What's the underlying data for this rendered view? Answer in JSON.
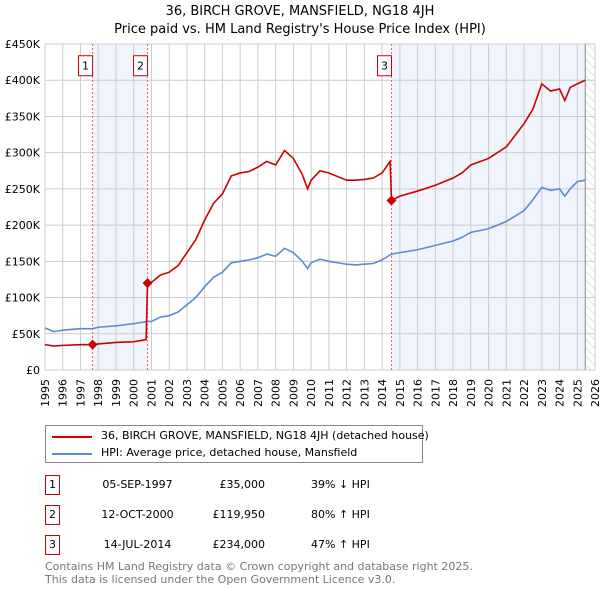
{
  "title_line1": "36, BIRCH GROVE, MANSFIELD, NG18 4JH",
  "title_line2": "Price paid vs. HM Land Registry's House Price Index (HPI)",
  "chart_data": {
    "type": "line",
    "title": "36, BIRCH GROVE, MANSFIELD, NG18 4JH — Price paid vs. HM Land Registry's House Price Index (HPI)",
    "xlim": [
      1995,
      2026
    ],
    "ylim": [
      0,
      450000
    ],
    "x_ticks": [
      "1995",
      "1996",
      "1997",
      "1998",
      "1999",
      "2000",
      "2001",
      "2002",
      "2003",
      "2004",
      "2005",
      "2006",
      "2007",
      "2008",
      "2009",
      "2010",
      "2011",
      "2012",
      "2013",
      "2014",
      "2015",
      "2016",
      "2017",
      "2018",
      "2019",
      "2020",
      "2021",
      "2022",
      "2023",
      "2024",
      "2025",
      "2026"
    ],
    "y_ticks": [
      {
        "value": 0,
        "label": "£0"
      },
      {
        "value": 50000,
        "label": "£50K"
      },
      {
        "value": 100000,
        "label": "£100K"
      },
      {
        "value": 150000,
        "label": "£150K"
      },
      {
        "value": 200000,
        "label": "£200K"
      },
      {
        "value": 250000,
        "label": "£250K"
      },
      {
        "value": 300000,
        "label": "£300K"
      },
      {
        "value": 350000,
        "label": "£350K"
      },
      {
        "value": 400000,
        "label": "£400K"
      },
      {
        "value": 450000,
        "label": "£450K"
      }
    ],
    "grid": true,
    "forecast_start": 2025.45,
    "series": [
      {
        "name": "36, BIRCH GROVE, MANSFIELD, NG18 4JH (detached house)",
        "color": "#cc0000",
        "x": [
          1995,
          1995.5,
          1996,
          1997,
          1997.68,
          1998,
          1999,
          2000,
          2000.7,
          2000.78,
          2001,
          2001.5,
          2002,
          2002.5,
          2003,
          2003.5,
          2004,
          2004.5,
          2005,
          2005.5,
          2006,
          2006.5,
          2007,
          2007.5,
          2008,
          2008.5,
          2009,
          2009.5,
          2009.8,
          2010,
          2010.5,
          2011,
          2012,
          2012.5,
          2013,
          2013.5,
          2014,
          2014.45,
          2014.53,
          2015,
          2016,
          2017,
          2018,
          2018.5,
          2019,
          2020,
          2021,
          2022,
          2022.5,
          2023,
          2023.5,
          2024,
          2024.3,
          2024.6,
          2025,
          2025.45
        ],
        "y": [
          35,
          33,
          34,
          35,
          35,
          36,
          38,
          39,
          42,
          120,
          121,
          131,
          135,
          144,
          162,
          180,
          207,
          230,
          243,
          268,
          272,
          274,
          280,
          288,
          283,
          303,
          292,
          270,
          250,
          262,
          275,
          272,
          262,
          262,
          263,
          265,
          272,
          288,
          234,
          240,
          247,
          255,
          265,
          272,
          283,
          292,
          308,
          340,
          360,
          395,
          385,
          388,
          372,
          390,
          395,
          400
        ]
      },
      {
        "name": "HPI: Average price, detached house, Mansfield",
        "color": "#5b8bd0",
        "x": [
          1995,
          1995.5,
          1996,
          1997,
          1997.68,
          1998,
          1999,
          2000,
          2000.78,
          2001,
          2001.5,
          2002,
          2002.5,
          2003,
          2003.5,
          2004,
          2004.5,
          2005,
          2005.5,
          2006,
          2006.5,
          2007,
          2007.5,
          2008,
          2008.5,
          2009,
          2009.5,
          2009.8,
          2010,
          2010.5,
          2011,
          2012,
          2012.5,
          2013,
          2013.5,
          2014,
          2014.53,
          2015,
          2016,
          2017,
          2018,
          2018.5,
          2019,
          2020,
          2021,
          2022,
          2022.5,
          2023,
          2023.5,
          2024,
          2024.3,
          2024.6,
          2025,
          2025.45
        ],
        "y": [
          58,
          53,
          55,
          57,
          57,
          59,
          61,
          64,
          67,
          67,
          73,
          75,
          80,
          90,
          100,
          115,
          128,
          135,
          148,
          150,
          152,
          155,
          160,
          157,
          168,
          162,
          150,
          140,
          148,
          153,
          150,
          146,
          145,
          146,
          147,
          152,
          160,
          162,
          166,
          172,
          178,
          183,
          190,
          195,
          205,
          220,
          235,
          252,
          248,
          250,
          240,
          250,
          260,
          262
        ]
      }
    ],
    "y_unit": "thousands GBP",
    "sales": [
      {
        "num": "1",
        "x": 1997.68,
        "y": 35
      },
      {
        "num": "2",
        "x": 2000.78,
        "y": 119.95
      },
      {
        "num": "3",
        "x": 2014.53,
        "y": 234
      }
    ]
  },
  "legend": [
    {
      "label": "36, BIRCH GROVE, MANSFIELD, NG18 4JH (detached house)",
      "color": "#cc0000"
    },
    {
      "label": "HPI: Average price, detached house, Mansfield",
      "color": "#5b8bd0"
    }
  ],
  "transactions": [
    {
      "num": "1",
      "date": "05-SEP-1997",
      "price": "£35,000",
      "hpi": "39% ↓ HPI"
    },
    {
      "num": "2",
      "date": "12-OCT-2000",
      "price": "£119,950",
      "hpi": "80% ↑ HPI"
    },
    {
      "num": "3",
      "date": "14-JUL-2014",
      "price": "£234,000",
      "hpi": "47% ↑ HPI"
    }
  ],
  "footer_line1": "Contains HM Land Registry data © Crown copyright and database right 2025.",
  "footer_line2": "This data is licensed under the Open Government Licence v3.0."
}
